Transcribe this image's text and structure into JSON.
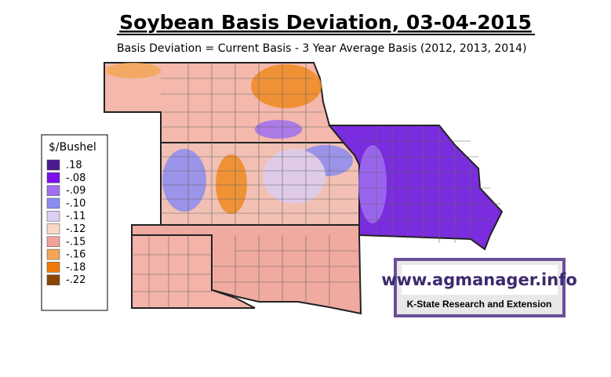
{
  "title": "Soybean Basis Deviation, 03-04-2015",
  "subtitle": "Basis Deviation = Current Basis - 3 Year Average Basis (2012, 2013, 2014)",
  "legend": {
    "title": "$/Bushel",
    "items": [
      {
        "label": ".18",
        "color": "#4b1a8f"
      },
      {
        "label": "-.08",
        "color": "#7a10ee"
      },
      {
        "label": "-.09",
        "color": "#a070f0"
      },
      {
        "label": "-.10",
        "color": "#8c8cf2"
      },
      {
        "label": "-.11",
        "color": "#dccdf2"
      },
      {
        "label": "-.12",
        "color": "#f8d9c8"
      },
      {
        "label": "-.15",
        "color": "#f0a29a"
      },
      {
        "label": "-.16",
        "color": "#f2a656"
      },
      {
        "label": "-.18",
        "color": "#ef7a08"
      },
      {
        "label": "-.22",
        "color": "#8b4500"
      }
    ]
  },
  "logo": {
    "url": "www.agmanager.info",
    "org": "K-State Research and Extension"
  }
}
